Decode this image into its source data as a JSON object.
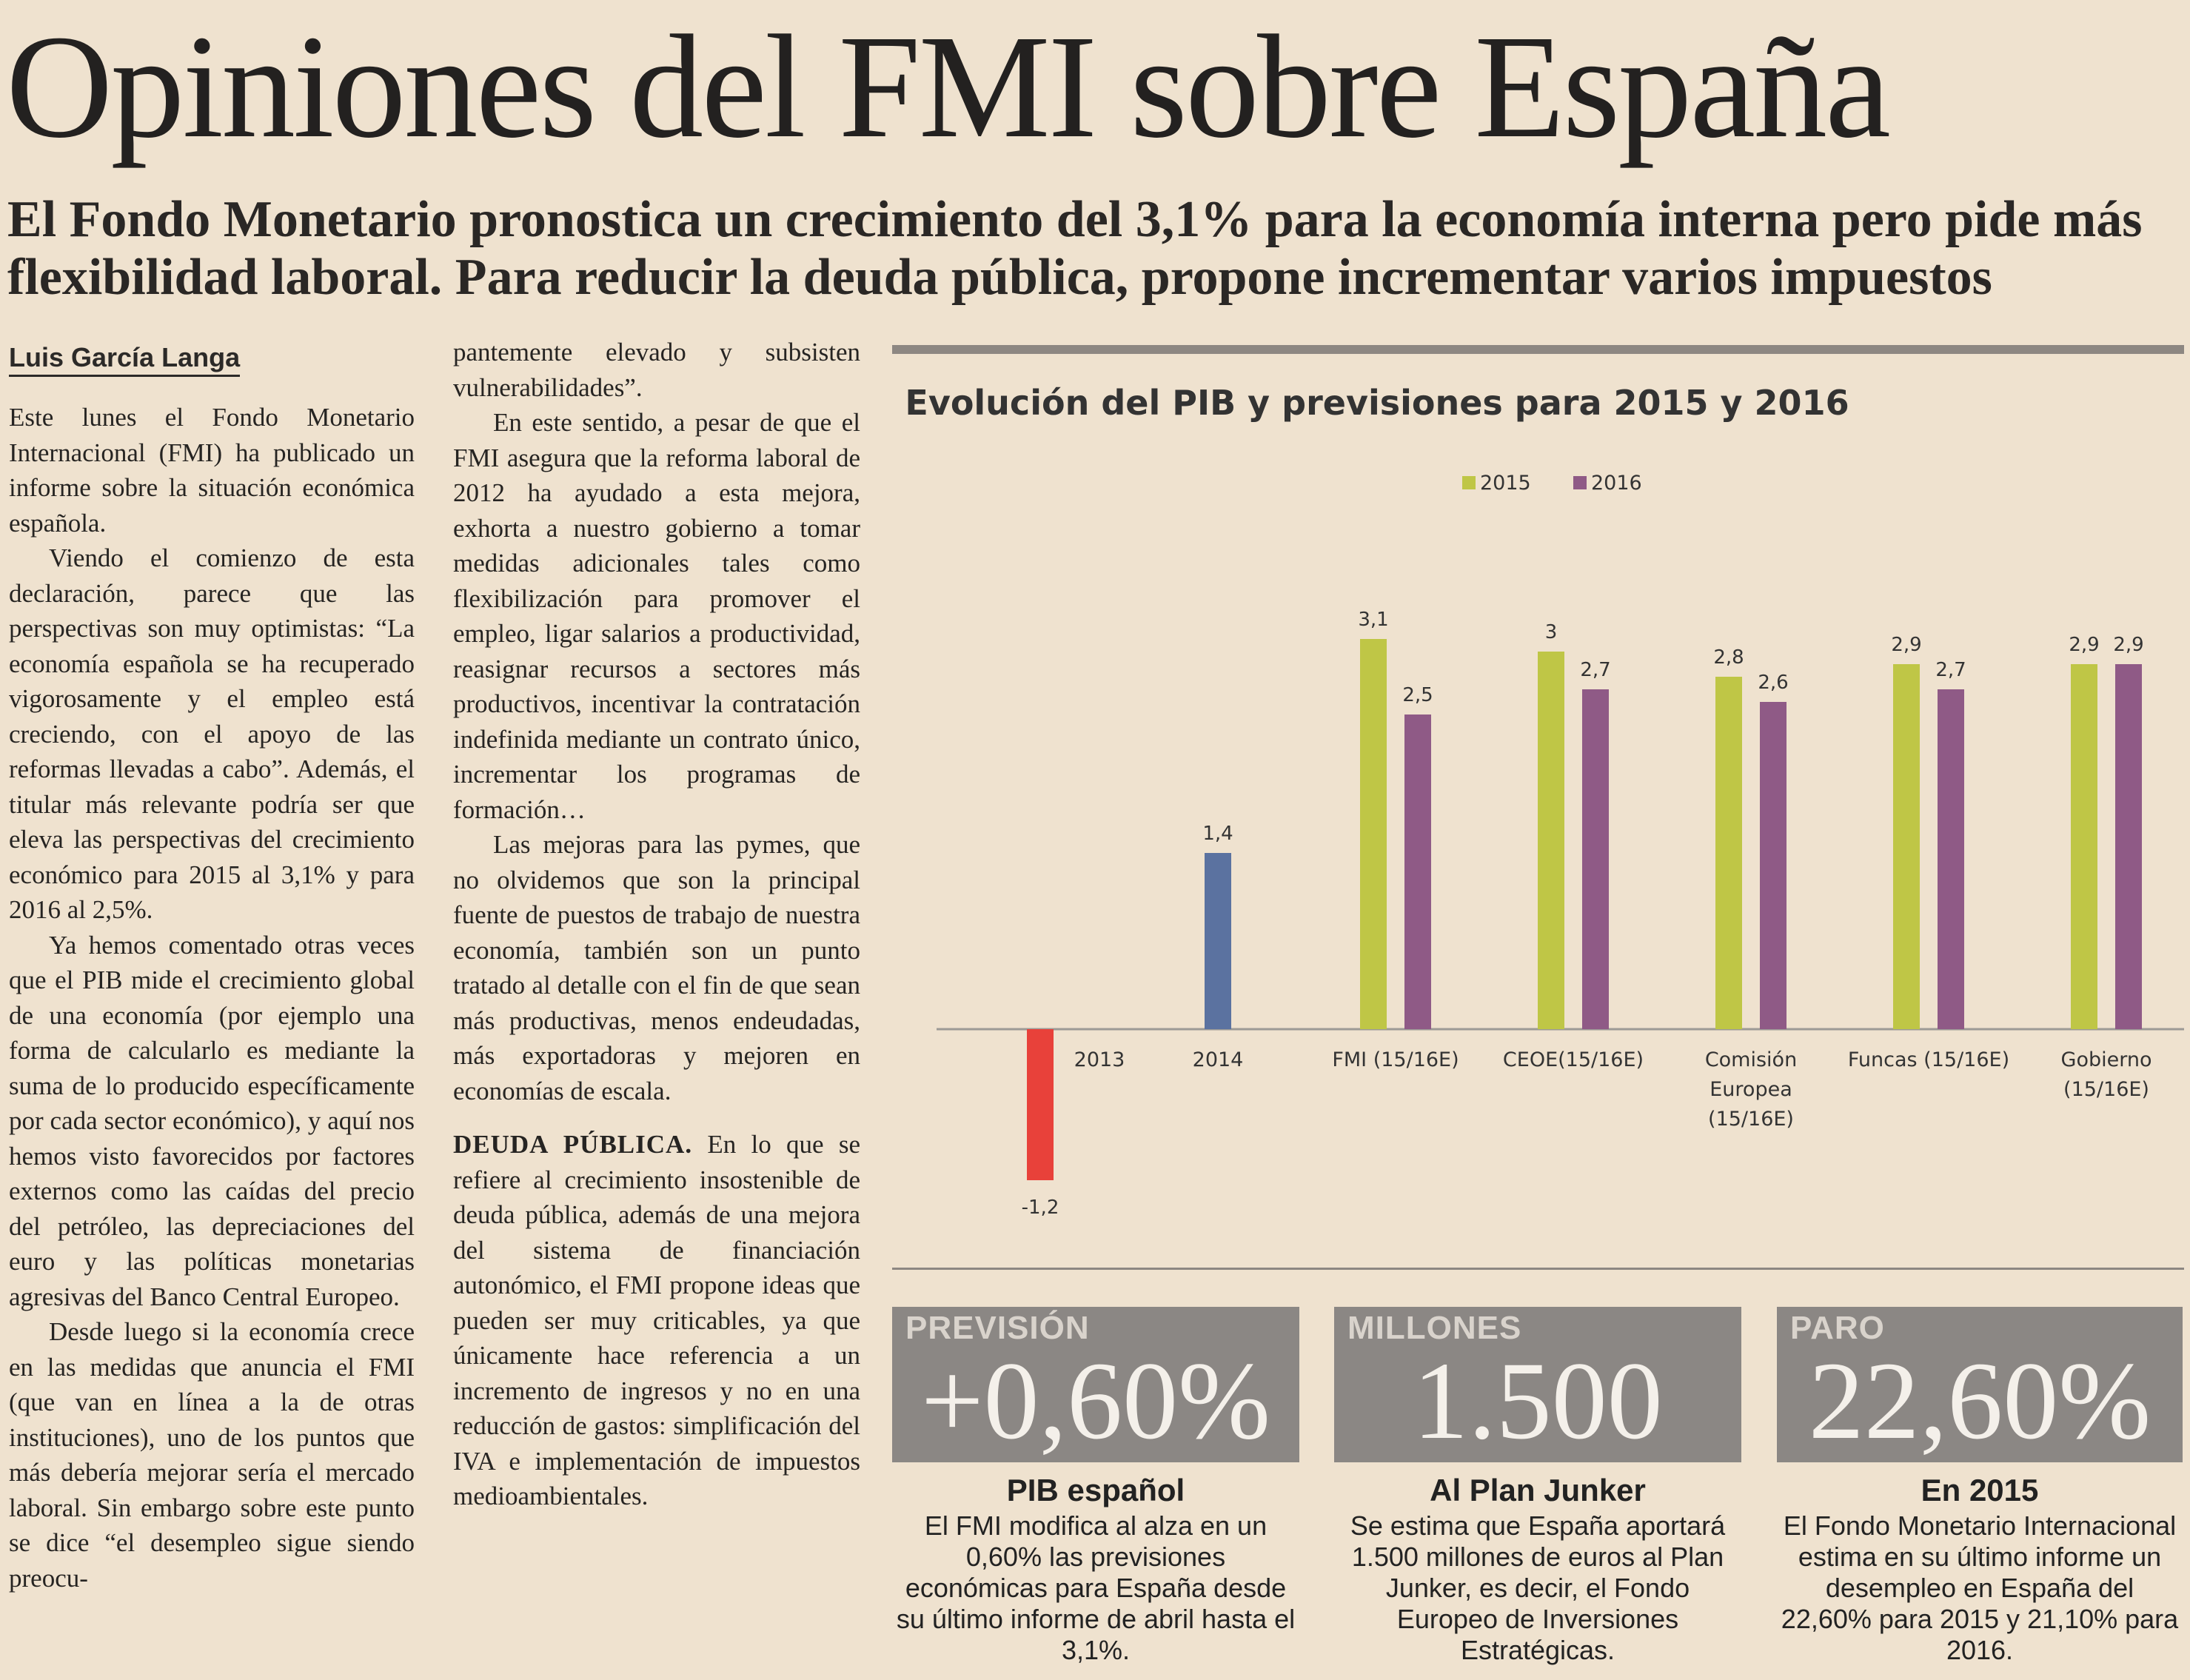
{
  "article": {
    "headline": "Opiniones del FMI sobre España",
    "subheadline_lines": [
      "El Fondo Monetario pronostica un crecimiento del 3,1% para la economía interna pero pide más",
      "flexibilidad laboral. Para reducir la deuda pública, propone incrementar varios impuestos"
    ],
    "byline": "Luis García Langa",
    "column1": [
      "Este lunes el Fondo Monetario Internacional (FMI) ha publicado un informe sobre la situación económica española.",
      "Viendo el comienzo de esta declaración, parece que las perspectivas son muy optimistas: “La economía española se ha recuperado vigorosamente y el empleo está creciendo, con el apoyo de las reformas llevadas a cabo”. Además, el titular más relevante podría ser que eleva las perspectivas del crecimiento económico para 2015 al 3,1% y para 2016 al 2,5%.",
      "Ya hemos comentado otras veces que el PIB mide el crecimiento global de una economía (por ejemplo una forma de calcularlo es mediante la suma de lo producido específicamente por cada sector económico), y aquí nos hemos visto favorecidos por factores externos como las caídas del precio del petróleo, las depreciaciones del euro y las políticas monetarias agresivas del Banco Central Europeo.",
      "Desde luego si la economía crece en las medidas que anuncia el FMI (que van en línea a la de otras instituciones), uno de los puntos que más debería mejorar sería el mercado laboral. Sin embargo sobre este punto se dice “el desempleo sigue siendo preocu-"
    ],
    "column2": [
      "pantemente elevado y subsisten vulnerabilidades”.",
      "En este sentido, a pesar de que el FMI asegura que la reforma laboral de 2012 ha ayudado a esta mejora, exhorta a nuestro gobierno a tomar medidas adicionales tales como flexibilización para promover el empleo, ligar salarios a productividad, reasignar recursos a sectores más productivos, incentivar la contratación indefinida mediante un contrato único, incrementar los programas de formación…",
      "Las mejoras para las pymes, que no olvidemos que son la principal fuente de puestos de trabajo de nuestra economía, también son un punto tratado al detalle con el fin de que sean más productivas, menos endeudadas, más exportadoras y mejoren en economías de escala."
    ],
    "section_head": "DEUDA PÚBLICA.",
    "section_body": " En lo que se refiere al crecimiento insostenible de deuda pública, además de una mejora del sistema de financiación autonómico, el FMI propone ideas que pueden ser muy criticables, ya que únicamente hace referencia a un incremento de ingresos y no en una reducción de gastos: simplificación del IVA e implementación de impuestos medioambientales."
  },
  "stats": [
    {
      "label": "PREVISIÓN",
      "value": "+0,60%",
      "title": "PIB español",
      "text": "El FMI modifica al alza en un 0,60% las previsiones económicas para España desde su último informe de abril hasta el 3,1%."
    },
    {
      "label": "MILLONES",
      "value": "1.500",
      "title": "Al Plan Junker",
      "text": "Se estima que España aportará 1.500 millones de euros al Plan Junker, es decir, el Fondo Europeo de Inversiones Estratégicas."
    },
    {
      "label": "PARO",
      "value": "22,60%",
      "title": "En 2015",
      "text": "El Fondo Monetario Internacional estima en su último informe un desempleo en España del 22,60% para 2015 y 21,10% para 2016."
    }
  ],
  "chart_data": {
    "type": "bar",
    "title": "Evolución del PIB y previsiones para 2015 y 2016",
    "legend": [
      "2015",
      "2016"
    ],
    "legend_position": "top-center",
    "colors": {
      "2013": "#e8413a",
      "2014": "#5b72a0",
      "2015": "#bfc646",
      "2016": "#8f5a86"
    },
    "categories": [
      {
        "label_lines": [
          "2013"
        ],
        "bars": [
          {
            "series": "2013",
            "value": -1.2,
            "label": "-1,2"
          }
        ]
      },
      {
        "label_lines": [
          "2014"
        ],
        "bars": [
          {
            "series": "2014",
            "value": 1.4,
            "label": "1,4"
          }
        ]
      },
      {
        "label_lines": [
          "FMI (15/16E)"
        ],
        "bars": [
          {
            "series": "2015",
            "value": 3.1,
            "label": "3,1"
          },
          {
            "series": "2016",
            "value": 2.5,
            "label": "2,5"
          }
        ]
      },
      {
        "label_lines": [
          "CEOE(15/16E)"
        ],
        "bars": [
          {
            "series": "2015",
            "value": 3.0,
            "label": "3"
          },
          {
            "series": "2016",
            "value": 2.7,
            "label": "2,7"
          }
        ]
      },
      {
        "label_lines": [
          "Comisión",
          "Europea",
          "(15/16E)"
        ],
        "bars": [
          {
            "series": "2015",
            "value": 2.8,
            "label": "2,8"
          },
          {
            "series": "2016",
            "value": 2.6,
            "label": "2,6"
          }
        ]
      },
      {
        "label_lines": [
          "Funcas (15/16E)"
        ],
        "bars": [
          {
            "series": "2015",
            "value": 2.9,
            "label": "2,9"
          },
          {
            "series": "2016",
            "value": 2.7,
            "label": "2,7"
          }
        ]
      },
      {
        "label_lines": [
          "Gobierno",
          "(15/16E)"
        ],
        "bars": [
          {
            "series": "2015",
            "value": 2.9,
            "label": "2,9"
          },
          {
            "series": "2016",
            "value": 2.9,
            "label": "2,9"
          }
        ]
      }
    ],
    "ylim": [
      -1.2,
      3.1
    ],
    "grid": false
  }
}
